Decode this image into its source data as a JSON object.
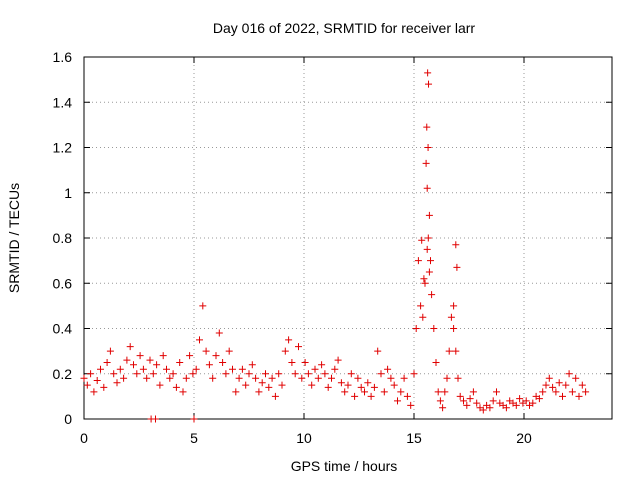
{
  "chart_data": {
    "type": "scatter",
    "title": "Day 016 of 2022, SRMTID for receiver larr",
    "xlabel": "GPS time / hours",
    "ylabel": "SRMTID / TECUs",
    "xlim": [
      0,
      24
    ],
    "ylim": [
      0,
      1.6
    ],
    "xticks": [
      "0",
      "5",
      "10",
      "15",
      "20"
    ],
    "yticks": [
      "0",
      "0.2",
      "0.4",
      "0.6",
      "0.8",
      "1",
      "1.2",
      "1.4",
      "1.6"
    ],
    "grid": true,
    "marker": "+",
    "color": "#e00000",
    "series": [
      {
        "name": "larr",
        "x": [
          0.0,
          0.15,
          0.3,
          0.45,
          0.6,
          0.75,
          0.9,
          1.05,
          1.2,
          1.35,
          1.5,
          1.65,
          1.8,
          1.95,
          2.1,
          2.25,
          2.4,
          2.55,
          2.7,
          2.85,
          3.0,
          3.15,
          3.3,
          3.45,
          3.6,
          3.75,
          3.9,
          4.05,
          4.2,
          4.35,
          4.5,
          4.65,
          4.8,
          4.95,
          5.1,
          5.25,
          5.4,
          5.55,
          5.7,
          5.85,
          6.0,
          6.15,
          6.3,
          6.45,
          6.6,
          6.75,
          6.9,
          7.05,
          7.2,
          7.35,
          7.5,
          7.65,
          7.8,
          7.95,
          8.1,
          8.25,
          8.4,
          8.55,
          8.7,
          8.85,
          9.0,
          9.15,
          9.3,
          9.45,
          9.6,
          9.75,
          9.9,
          10.05,
          10.2,
          10.35,
          10.5,
          10.65,
          10.8,
          10.95,
          11.1,
          11.25,
          11.4,
          11.55,
          11.7,
          11.85,
          12.0,
          12.15,
          12.3,
          12.45,
          12.6,
          12.75,
          12.9,
          13.05,
          13.2,
          13.35,
          13.5,
          13.65,
          13.8,
          13.95,
          14.1,
          14.25,
          14.4,
          14.55,
          14.7,
          14.85,
          15.0,
          15.1,
          15.2,
          15.3,
          15.4,
          15.5,
          15.6,
          15.65,
          15.7,
          15.75,
          15.8,
          15.9,
          16.0,
          16.1,
          16.2,
          16.3,
          16.4,
          16.5,
          16.6,
          16.7,
          16.8,
          16.9,
          17.0,
          17.1,
          17.25,
          17.4,
          17.55,
          17.7,
          17.85,
          18.0,
          18.15,
          18.3,
          18.45,
          18.6,
          18.75,
          18.9,
          19.05,
          19.2,
          19.35,
          19.5,
          19.65,
          19.8,
          19.95,
          20.1,
          20.25,
          20.4,
          20.55,
          20.7,
          20.85,
          21.0,
          21.15,
          21.3,
          21.45,
          21.6,
          21.75,
          21.9,
          22.05,
          22.2,
          22.35,
          22.5,
          22.65,
          22.8,
          3.05,
          3.25,
          5.0,
          15.62,
          15.66,
          15.58,
          15.64,
          15.6,
          15.7,
          15.55,
          16.9,
          16.95,
          15.35,
          15.45,
          16.8
        ],
        "y": [
          0.18,
          0.15,
          0.2,
          0.12,
          0.17,
          0.22,
          0.14,
          0.25,
          0.3,
          0.2,
          0.16,
          0.22,
          0.18,
          0.26,
          0.32,
          0.24,
          0.2,
          0.28,
          0.22,
          0.18,
          0.26,
          0.2,
          0.24,
          0.15,
          0.28,
          0.22,
          0.18,
          0.2,
          0.14,
          0.25,
          0.12,
          0.18,
          0.28,
          0.2,
          0.22,
          0.35,
          0.5,
          0.3,
          0.24,
          0.18,
          0.28,
          0.38,
          0.25,
          0.2,
          0.3,
          0.22,
          0.12,
          0.18,
          0.22,
          0.15,
          0.2,
          0.24,
          0.18,
          0.12,
          0.16,
          0.2,
          0.14,
          0.18,
          0.1,
          0.2,
          0.15,
          0.3,
          0.35,
          0.25,
          0.2,
          0.32,
          0.18,
          0.25,
          0.2,
          0.15,
          0.22,
          0.18,
          0.24,
          0.2,
          0.14,
          0.18,
          0.22,
          0.26,
          0.16,
          0.12,
          0.15,
          0.2,
          0.1,
          0.18,
          0.14,
          0.12,
          0.16,
          0.1,
          0.14,
          0.3,
          0.2,
          0.12,
          0.22,
          0.18,
          0.15,
          0.08,
          0.12,
          0.18,
          0.1,
          0.06,
          0.2,
          0.4,
          0.7,
          0.5,
          0.45,
          0.6,
          0.75,
          0.8,
          0.65,
          0.7,
          0.55,
          0.4,
          0.25,
          0.12,
          0.08,
          0.05,
          0.12,
          0.18,
          0.3,
          0.45,
          0.4,
          0.3,
          0.18,
          0.1,
          0.08,
          0.06,
          0.09,
          0.12,
          0.07,
          0.05,
          0.04,
          0.06,
          0.05,
          0.08,
          0.12,
          0.07,
          0.06,
          0.05,
          0.08,
          0.07,
          0.06,
          0.09,
          0.07,
          0.08,
          0.06,
          0.07,
          0.1,
          0.09,
          0.12,
          0.15,
          0.18,
          0.14,
          0.12,
          0.16,
          0.1,
          0.15,
          0.2,
          0.12,
          0.18,
          0.1,
          0.15,
          0.12,
          0.0,
          0.0,
          0.0,
          1.53,
          1.48,
          1.29,
          1.2,
          1.02,
          0.9,
          1.13,
          0.77,
          0.67,
          0.79,
          0.62,
          0.5
        ]
      }
    ]
  }
}
